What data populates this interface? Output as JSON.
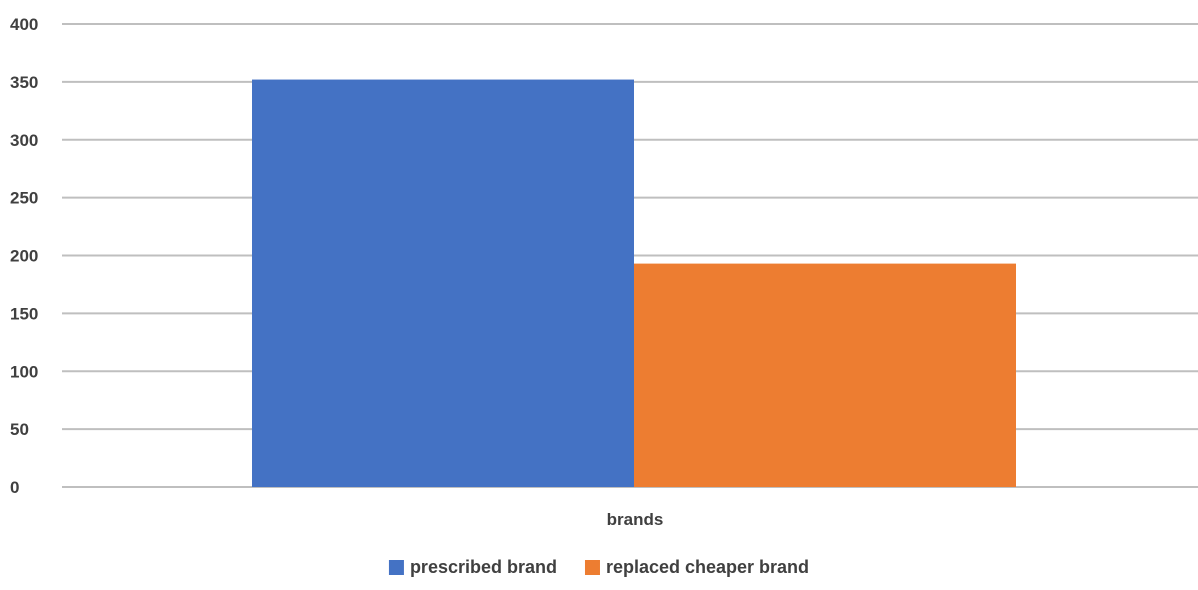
{
  "chart_data": {
    "type": "bar",
    "title": "",
    "xlabel": "",
    "ylabel": "",
    "categories": [
      "brands"
    ],
    "series": [
      {
        "name": "prescribed brand",
        "values": [
          352
        ],
        "color": "#4472C4"
      },
      {
        "name": "replaced cheaper brand",
        "values": [
          193
        ],
        "color": "#ED7D31"
      }
    ],
    "ylim": [
      0,
      400
    ],
    "yticks": [
      0,
      50,
      100,
      150,
      200,
      250,
      300,
      350,
      400
    ],
    "grid": true,
    "legend_position": "bottom",
    "gridline_color": "#bfbfbf",
    "text_color": "#404040"
  }
}
